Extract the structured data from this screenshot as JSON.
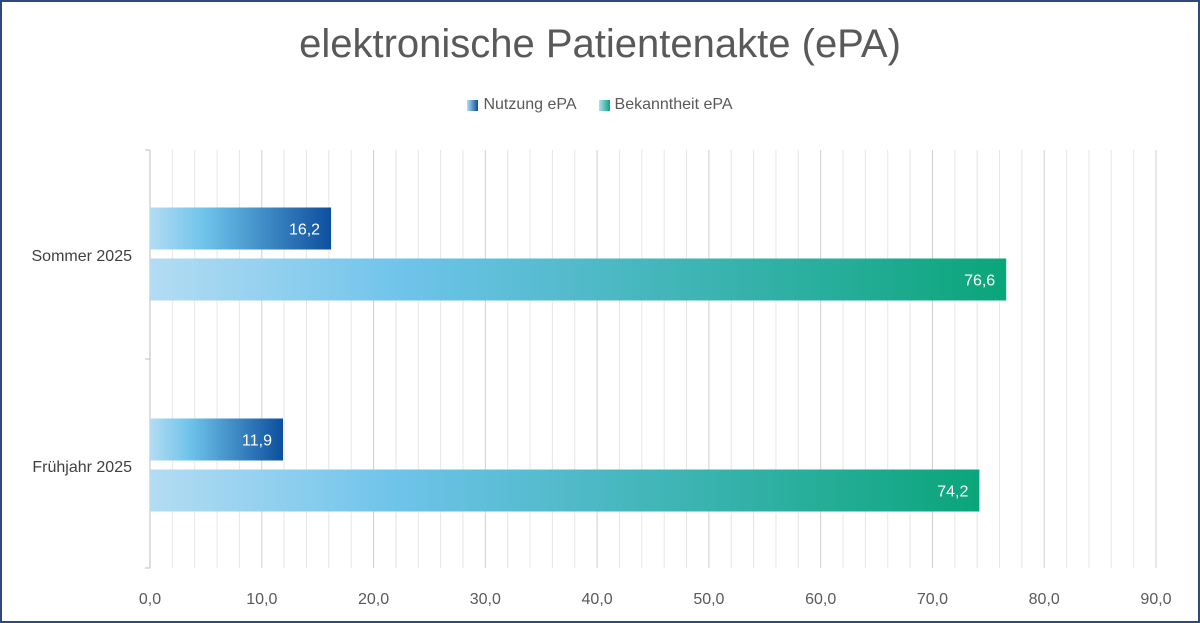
{
  "chart_data": {
    "type": "bar",
    "orientation": "horizontal",
    "title": "elektronische Patientenakte (ePA)",
    "categories": [
      "Sommer 2025",
      "Frühjahr 2025"
    ],
    "series": [
      {
        "name": "Nutzung ePA",
        "values": [
          16.2,
          11.9
        ],
        "labels": [
          "16,2",
          "11,9"
        ],
        "color_start": "#b3dcf3",
        "color_end": "#0d4f9e"
      },
      {
        "name": "Bekanntheit ePA",
        "values": [
          76.6,
          74.2
        ],
        "labels": [
          "76,6",
          "74,2"
        ],
        "color_start": "#b3dcf3",
        "color_end": "#0aa57a"
      }
    ],
    "xlim": [
      0,
      90
    ],
    "x_ticks": [
      "0,0",
      "10,0",
      "20,0",
      "30,0",
      "40,0",
      "50,0",
      "60,0",
      "70,0",
      "80,0",
      "90,0"
    ],
    "grid": true,
    "legend_position": "top"
  }
}
